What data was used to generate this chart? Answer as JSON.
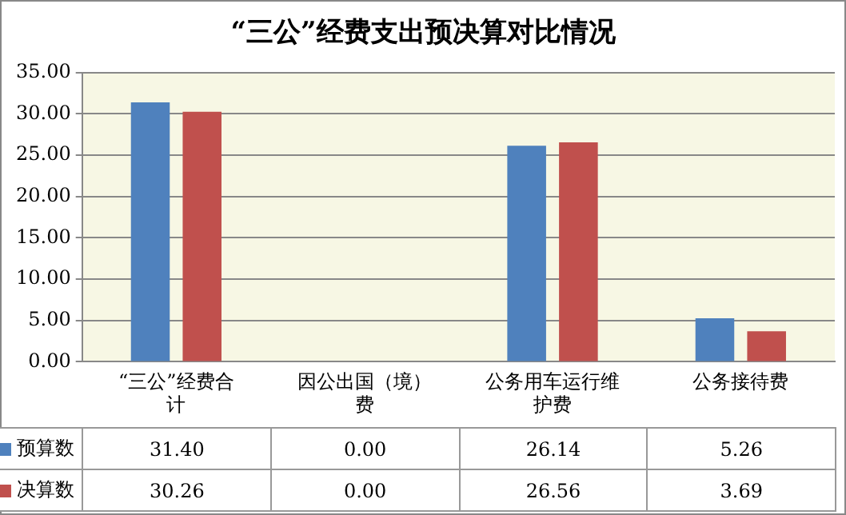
{
  "chart_data": {
    "type": "bar",
    "title": "“三公”经费支出预决算对比情况",
    "categories": [
      "“三公”经费合计",
      "因公出国（境）费",
      "公务用车运行维护费",
      "公务接待费"
    ],
    "series": [
      {
        "name": "预算数",
        "color": "#4f81bd",
        "values": [
          31.4,
          0.0,
          26.14,
          5.26
        ],
        "value_labels": [
          "31.40",
          "0.00",
          "26.14",
          "5.26"
        ]
      },
      {
        "name": "决算数",
        "color": "#c0504d",
        "values": [
          30.26,
          0.0,
          26.56,
          3.69
        ],
        "value_labels": [
          "30.26",
          "0.00",
          "26.56",
          "3.69"
        ]
      }
    ],
    "ylim": [
      0,
      35
    ],
    "yticks": [
      {
        "value": 0,
        "label": "0.00"
      },
      {
        "value": 5,
        "label": "5.00"
      },
      {
        "value": 10,
        "label": "10.00"
      },
      {
        "value": 15,
        "label": "15.00"
      },
      {
        "value": 20,
        "label": "20.00"
      },
      {
        "value": 25,
        "label": "25.00"
      },
      {
        "value": 30,
        "label": "30.00"
      },
      {
        "value": 35,
        "label": "35.00"
      }
    ],
    "grid": "y",
    "legend": "bottom"
  }
}
